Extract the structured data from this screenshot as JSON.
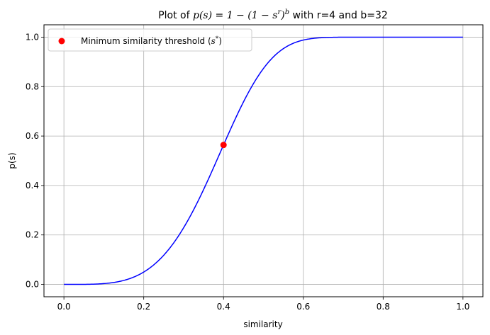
{
  "chart_data": {
    "type": "line",
    "title_prefix": "Plot of ",
    "title_formula": "p(s) = 1 − (1 − s",
    "title_sup_r": "r",
    "title_close": ")",
    "title_sup_b": "b",
    "title_suffix": " with r=4 and b=32",
    "xlabel": "similarity",
    "ylabel": "p(s)",
    "xlim": [
      -0.05,
      1.05
    ],
    "ylim": [
      -0.05,
      1.05
    ],
    "xticks": [
      0.0,
      0.2,
      0.4,
      0.6,
      0.8,
      1.0
    ],
    "xtick_labels": [
      "0.0",
      "0.2",
      "0.4",
      "0.6",
      "0.8",
      "1.0"
    ],
    "yticks": [
      0.0,
      0.2,
      0.4,
      0.6,
      0.8,
      1.0
    ],
    "ytick_labels": [
      "0.0",
      "0.2",
      "0.4",
      "0.6",
      "0.8",
      "1.0"
    ],
    "grid": true,
    "r": 4,
    "b": 32,
    "curve_color": "#0000ff",
    "marker_color": "#ff0000",
    "threshold_point": {
      "x": 0.4,
      "y": 0.564
    },
    "legend": {
      "placement": "top-left",
      "label_prefix": "Minimum similarity threshold (",
      "label_var": "s",
      "label_sup": "*",
      "label_suffix": ")"
    }
  }
}
